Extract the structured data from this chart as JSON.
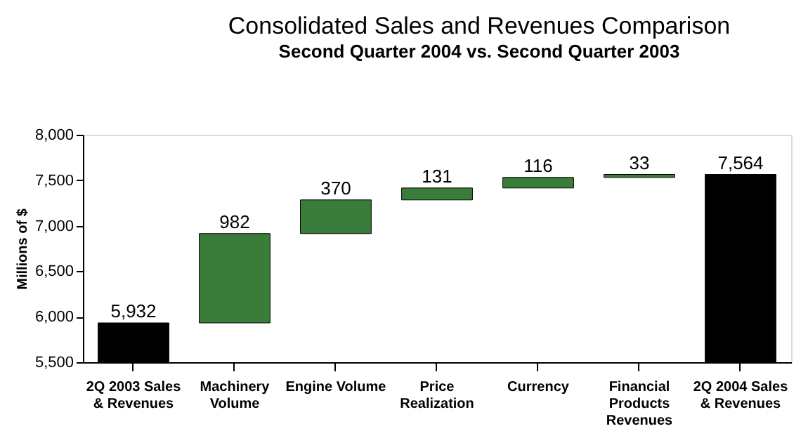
{
  "chart_data": {
    "type": "bar",
    "title": "Consolidated Sales and Revenues Comparison",
    "subtitle": "Second Quarter 2004 vs. Second Quarter 2003",
    "ylabel": "Millions of $",
    "categories": [
      "2Q 2003 Sales & Revenues",
      "Machinery Volume",
      "Engine Volume",
      "Price Realization",
      "Currency",
      "Financial Products Revenues",
      "2Q 2004 Sales & Revenues"
    ],
    "values": [
      5932,
      982,
      370,
      131,
      116,
      33,
      7564
    ],
    "base": [
      null,
      5932,
      6914,
      7284,
      7415,
      7531,
      null
    ],
    "colors": [
      "#000000",
      "#3a7d3a",
      "#3a7d3a",
      "#3a7d3a",
      "#3a7d3a",
      "#3a7d3a",
      "#000000"
    ],
    "value_labels": [
      "5,932",
      "982",
      "370",
      "131",
      "116",
      "33",
      "7,564"
    ],
    "ylim": [
      5500,
      8000
    ],
    "yticks": [
      {
        "value": 5500,
        "label": "5,500"
      },
      {
        "value": 6000,
        "label": "6,000"
      },
      {
        "value": 6500,
        "label": "6,500"
      },
      {
        "value": 7000,
        "label": "7,000"
      },
      {
        "value": 7500,
        "label": "7,500"
      },
      {
        "value": 8000,
        "label": "8,000"
      }
    ],
    "grid": false
  }
}
